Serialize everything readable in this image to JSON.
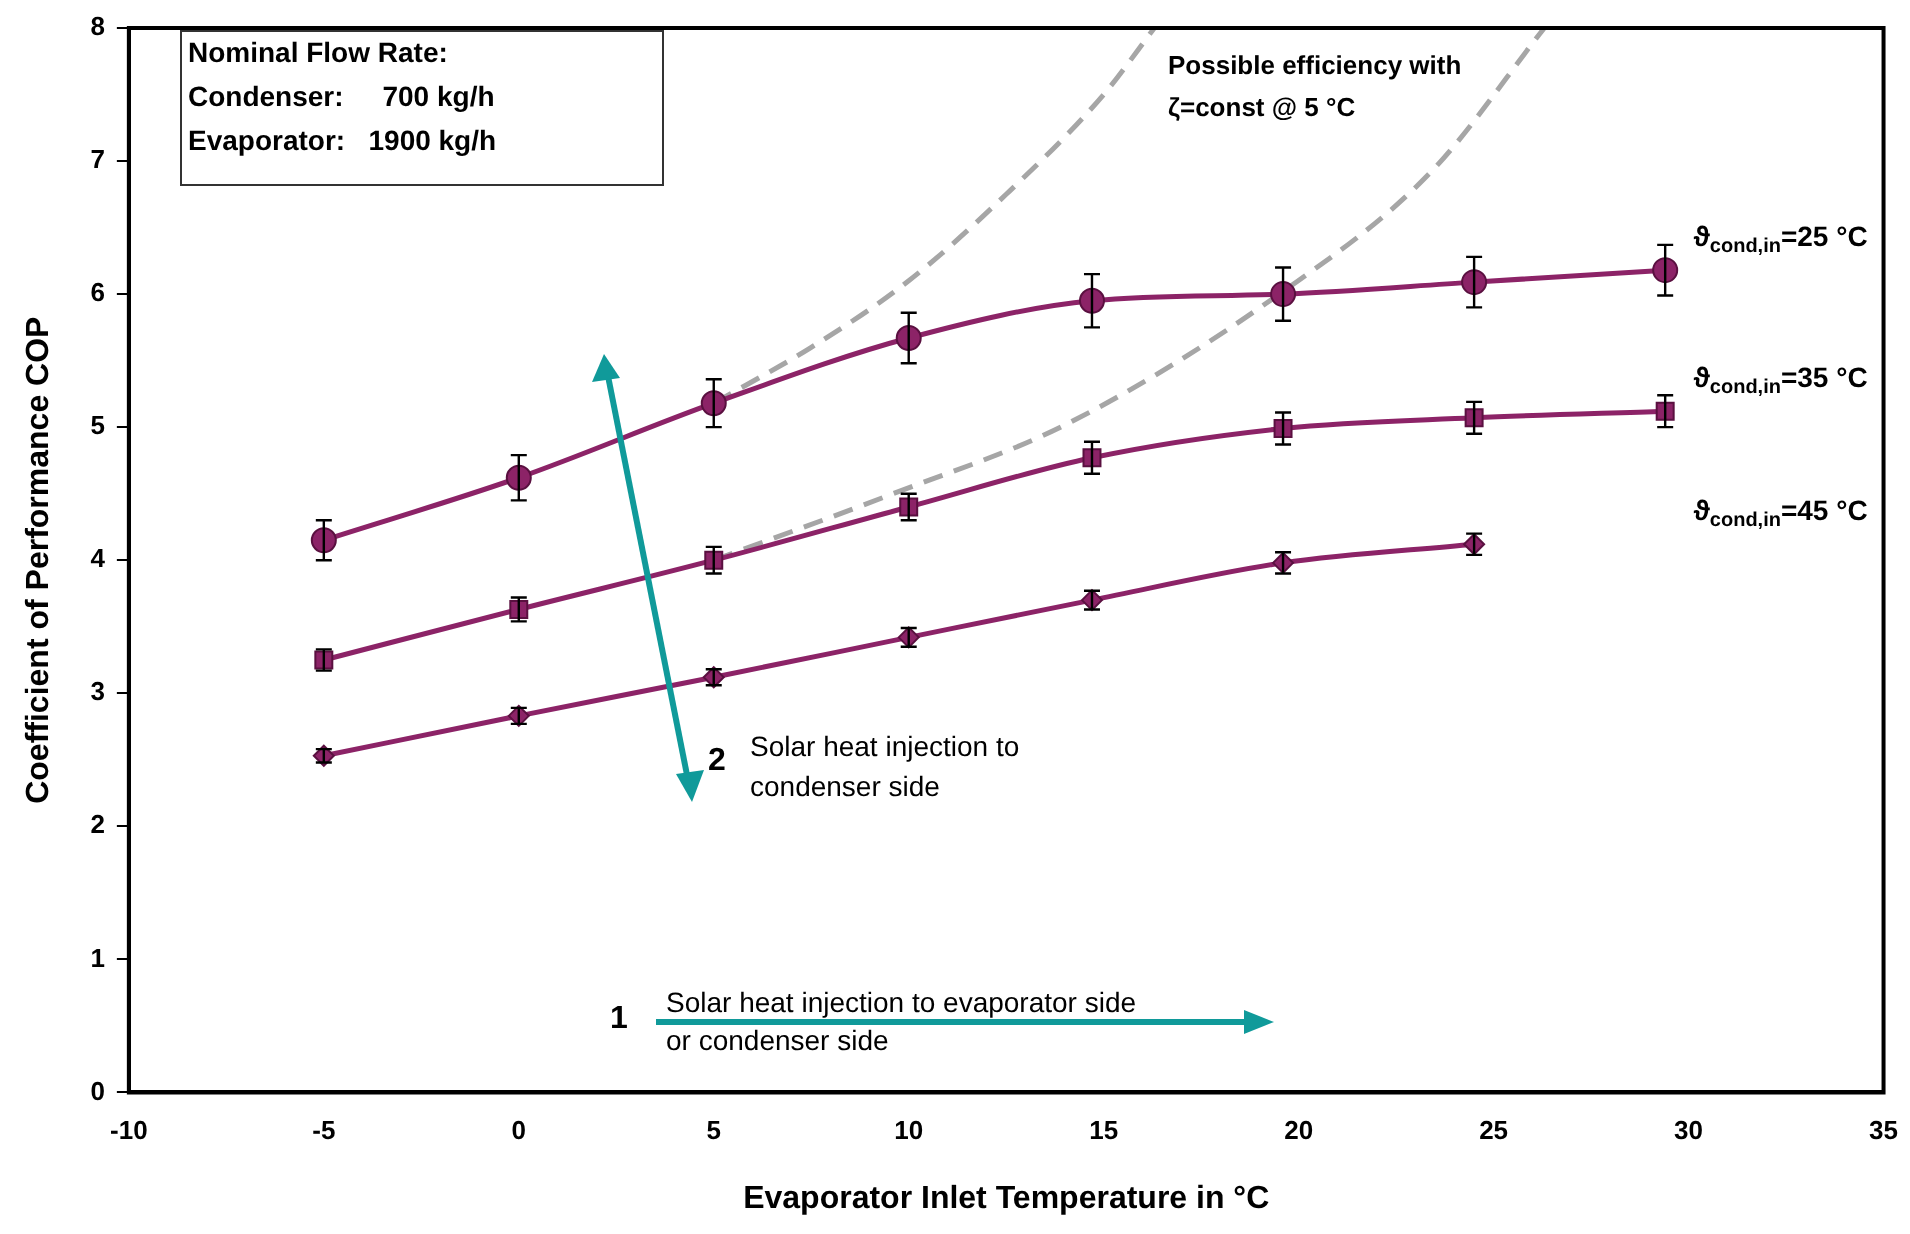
{
  "chart_data": {
    "type": "line",
    "xlabel": "Evaporator Inlet Temperature in °C",
    "ylabel": "Coefficient of Performance COP",
    "xlim": [
      -10,
      35
    ],
    "xticks": [
      -10,
      -5,
      0,
      5,
      10,
      15,
      20,
      25,
      30,
      35
    ],
    "ylim": [
      0,
      8
    ],
    "yticks": [
      0,
      1,
      2,
      3,
      4,
      5,
      6,
      7,
      8
    ],
    "legend": false,
    "series": [
      {
        "name": "ϑ$_{cond,in}$=25 °C",
        "color": "#8c2367",
        "marker": "circle",
        "line_style": "solid",
        "x": [
          -5,
          0,
          5,
          10,
          14.7,
          19.6,
          24.5,
          29.4
        ],
        "values": [
          4.15,
          4.62,
          5.18,
          5.67,
          5.95,
          6.0,
          6.09,
          6.18
        ],
        "errors": [
          0.15,
          0.17,
          0.18,
          0.19,
          0.2,
          0.2,
          0.19,
          0.19
        ]
      },
      {
        "name": "ϑ$_{cond,in}$=35 °C",
        "color": "#8c2367",
        "marker": "square",
        "line_style": "solid",
        "x": [
          -5,
          0,
          5,
          10,
          14.7,
          19.6,
          24.5,
          29.4
        ],
        "values": [
          3.25,
          3.63,
          4.0,
          4.4,
          4.77,
          4.99,
          5.07,
          5.12
        ],
        "errors": [
          0.08,
          0.09,
          0.1,
          0.1,
          0.12,
          0.12,
          0.12,
          0.12
        ]
      },
      {
        "name": "ϑ$_{cond,in}$=45 °C",
        "color": "#8c2367",
        "marker": "diamond",
        "line_style": "solid",
        "x": [
          -5,
          0,
          5,
          10,
          14.7,
          19.6,
          24.5
        ],
        "values": [
          2.53,
          2.83,
          3.12,
          3.42,
          3.7,
          3.98,
          4.12
        ],
        "errors": [
          0.05,
          0.06,
          0.06,
          0.07,
          0.07,
          0.08,
          0.08
        ]
      },
      {
        "color": "#a6a6a6",
        "marker": "none",
        "line_style": "dashed",
        "x": [
          5,
          7.5,
          10,
          12.5,
          15,
          16.3
        ],
        "values": [
          5.18,
          5.6,
          6.1,
          6.75,
          7.5,
          8
        ]
      },
      {
        "color": "#a6a6a6",
        "marker": "none",
        "line_style": "dashed",
        "x": [
          5,
          9.6,
          14.1,
          19.6,
          23.4,
          26.3
        ],
        "values": [
          4.0,
          4.5,
          5.03,
          6.02,
          6.92,
          8
        ]
      }
    ],
    "annotations": [
      "Nominal Flow Rate:",
      "Condenser:     700 kg/h",
      "Evaporator:   1900 kg/h",
      "Possible efficiency with",
      "ζ=const @ 5 °C",
      "1",
      "Solar heat injection to evaporator side",
      "or condenser side",
      "2",
      "Solar heat injection to",
      "condenser side"
    ]
  }
}
